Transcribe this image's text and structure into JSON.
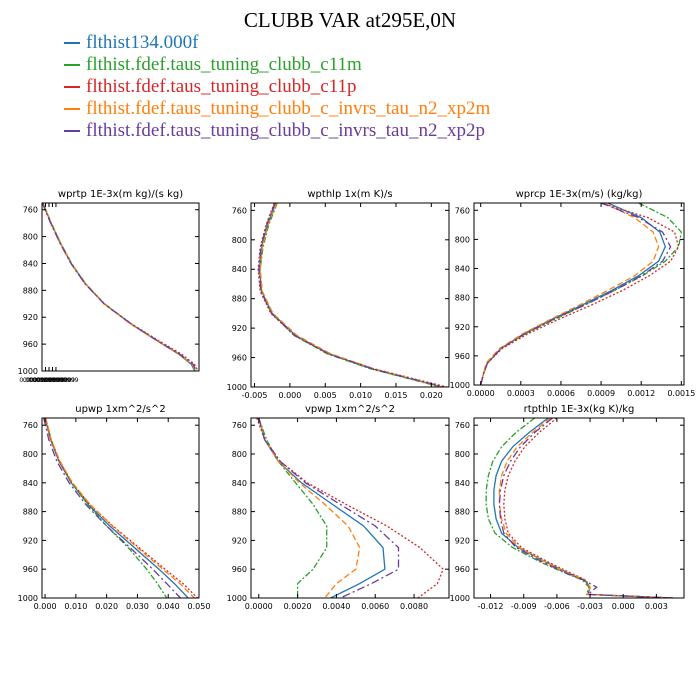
{
  "figure": {
    "title": "CLUBB VAR at295E,0N",
    "colors": {
      "flthist134.000f": "#1f77b4",
      "c11m": "#2ca02c",
      "c11p": "#d62728",
      "xp2m": "#ff7f0e",
      "xp2p": "#6a3d9a"
    }
  },
  "legend": {
    "items": [
      {
        "label": "flthist134.000f",
        "color": "#1f77b4",
        "dash": "solid"
      },
      {
        "label": "flthist.fdef.taus_tuning_clubb_c11m",
        "color": "#2ca02c",
        "dash": "solid"
      },
      {
        "label": "flthist.fdef.taus_tuning_clubb_c11p",
        "color": "#d62728",
        "dash": "solid"
      },
      {
        "label": "flthist.fdef.taus_tuning_clubb_c_invrs_tau_n2_xp2m",
        "color": "#ff7f0e",
        "dash": "solid"
      },
      {
        "label": "flthist.fdef.taus_tuning_clubb_c_invrs_tau_n2_xp2p",
        "color": "#6a3d9a",
        "dash": "solid"
      }
    ]
  },
  "chart_data": [
    {
      "type": "line",
      "title": "wprtp  1E-3x(m kg)/(s kg)",
      "xlim": [
        0.0,
        0.045
      ],
      "ylim": [
        1000,
        750
      ],
      "xticks": [
        "0.0000000000",
        "0.0009999999",
        "0.0020000000",
        "0.0029999999",
        "0.0039999999"
      ],
      "yticks": [
        760,
        800,
        840,
        880,
        920,
        960,
        1000
      ],
      "y": [
        750,
        780,
        810,
        840,
        870,
        900,
        930,
        955,
        975,
        990,
        1000
      ],
      "series": [
        {
          "name": "flthist134.000f",
          "color": "#1f77b4",
          "dash": "",
          "values": [
            0.0002,
            0.0026,
            0.0053,
            0.0084,
            0.0124,
            0.0178,
            0.0255,
            0.033,
            0.0392,
            0.0428,
            0.0438
          ]
        },
        {
          "name": "c11m",
          "color": "#2ca02c",
          "dash": "6,2,2,2",
          "values": [
            0.0003,
            0.0027,
            0.0054,
            0.0085,
            0.0125,
            0.0179,
            0.0256,
            0.0331,
            0.0393,
            0.0429,
            0.0439
          ]
        },
        {
          "name": "c11p",
          "color": "#d62728",
          "dash": "2,2",
          "values": [
            0.0001,
            0.0025,
            0.0052,
            0.0083,
            0.0123,
            0.0178,
            0.0257,
            0.0335,
            0.04,
            0.0437,
            0.0447
          ]
        },
        {
          "name": "xp2m",
          "color": "#ff7f0e",
          "dash": "6,3",
          "values": [
            0.0002,
            0.0026,
            0.0053,
            0.0084,
            0.0124,
            0.0177,
            0.0254,
            0.033,
            0.0393,
            0.043,
            0.0441
          ]
        },
        {
          "name": "xp2p",
          "color": "#6a3d9a",
          "dash": "8,3,2,3",
          "values": [
            0.0001,
            0.0025,
            0.0052,
            0.0083,
            0.0123,
            0.0178,
            0.0256,
            0.0332,
            0.0395,
            0.0433,
            0.0443
          ]
        }
      ]
    },
    {
      "type": "line",
      "title": "wpthlp  1x(m K)/s",
      "xlim": [
        -0.0055,
        0.0225
      ],
      "ylim": [
        1000,
        750
      ],
      "xticks": [
        "-0.005",
        "0.000",
        "0.005",
        "0.010",
        "0.015",
        "0.020"
      ],
      "yticks": [
        760,
        800,
        840,
        880,
        920,
        960,
        1000
      ],
      "y": [
        750,
        780,
        810,
        840,
        870,
        900,
        930,
        955,
        975,
        990,
        1000
      ],
      "series": [
        {
          "name": "flthist134.000f",
          "color": "#1f77b4",
          "dash": "",
          "values": [
            -0.002,
            -0.0032,
            -0.004,
            -0.0043,
            -0.004,
            -0.0025,
            0.0008,
            0.0055,
            0.0115,
            0.0175,
            0.0215
          ]
        },
        {
          "name": "c11m",
          "color": "#2ca02c",
          "dash": "6,2,2,2",
          "values": [
            -0.0018,
            -0.003,
            -0.0038,
            -0.0042,
            -0.004,
            -0.0026,
            0.0006,
            0.0053,
            0.0113,
            0.0173,
            0.0213
          ]
        },
        {
          "name": "c11p",
          "color": "#d62728",
          "dash": "2,2",
          "values": [
            -0.0022,
            -0.0034,
            -0.0042,
            -0.0045,
            -0.0042,
            -0.0027,
            0.0007,
            0.0056,
            0.0118,
            0.018,
            0.0222
          ]
        },
        {
          "name": "xp2m",
          "color": "#ff7f0e",
          "dash": "6,3",
          "values": [
            -0.0019,
            -0.0031,
            -0.0039,
            -0.0042,
            -0.0039,
            -0.0024,
            0.001,
            0.0058,
            0.0118,
            0.0176,
            0.0214
          ]
        },
        {
          "name": "xp2p",
          "color": "#6a3d9a",
          "dash": "8,3,2,3",
          "values": [
            -0.0021,
            -0.0033,
            -0.0041,
            -0.0044,
            -0.0041,
            -0.0026,
            0.0007,
            0.0055,
            0.0116,
            0.0177,
            0.0218
          ]
        }
      ]
    },
    {
      "type": "line",
      "title": "wprcp  1E-3x(m/s) (kg/kg)",
      "xlim": [
        -5e-05,
        0.00152
      ],
      "ylim": [
        1000,
        750
      ],
      "xticks": [
        "0.0000",
        "0.0003",
        "0.0006",
        "0.0009",
        "0.0012",
        "0.0015"
      ],
      "yticks": [
        760,
        800,
        840,
        880,
        920,
        960,
        1000
      ],
      "y": [
        750,
        770,
        790,
        810,
        830,
        850,
        870,
        890,
        910,
        930,
        950,
        970,
        985,
        1000
      ],
      "series": [
        {
          "name": "flthist134.000f",
          "color": "#1f77b4",
          "dash": "",
          "values": [
            0.00095,
            0.0012,
            0.00134,
            0.00138,
            0.00133,
            0.00118,
            0.00098,
            0.00076,
            0.00053,
            0.00032,
            0.00015,
            5e-05,
            2e-05,
            0.0
          ]
        },
        {
          "name": "c11m",
          "color": "#2ca02c",
          "dash": "6,2,2,2",
          "values": [
            0.00118,
            0.0014,
            0.0015,
            0.00148,
            0.00138,
            0.00121,
            0.001,
            0.00078,
            0.00055,
            0.00033,
            0.00015,
            5e-05,
            2e-05,
            0.0
          ]
        },
        {
          "name": "c11p",
          "color": "#d62728",
          "dash": "2,2",
          "values": [
            0.0009,
            0.00125,
            0.00145,
            0.00148,
            0.00142,
            0.00126,
            0.00106,
            0.00083,
            0.00058,
            0.00035,
            0.00016,
            5e-05,
            2e-05,
            0.0
          ]
        },
        {
          "name": "xp2m",
          "color": "#ff7f0e",
          "dash": "6,3",
          "values": [
            0.00092,
            0.00115,
            0.00129,
            0.00133,
            0.00129,
            0.00115,
            0.00095,
            0.00074,
            0.00052,
            0.00031,
            0.00014,
            4e-05,
            2e-05,
            0.0
          ]
        },
        {
          "name": "xp2p",
          "color": "#6a3d9a",
          "dash": "8,3,2,3",
          "values": [
            0.0009,
            0.00118,
            0.00136,
            0.00142,
            0.00136,
            0.0012,
            0.001,
            0.00078,
            0.00054,
            0.00033,
            0.00015,
            5e-05,
            2e-05,
            0.0
          ]
        }
      ]
    },
    {
      "type": "line",
      "title": "upwp  1xm^2/s^2",
      "xlim": [
        -0.001,
        0.05
      ],
      "ylim": [
        1000,
        750
      ],
      "xticks": [
        "0.000",
        "0.010",
        "0.020",
        "0.030",
        "0.040",
        "0.050"
      ],
      "yticks": [
        760,
        800,
        840,
        880,
        920,
        960,
        1000
      ],
      "y": [
        750,
        780,
        810,
        840,
        870,
        900,
        930,
        960,
        980,
        1000
      ],
      "series": [
        {
          "name": "flthist134.000f",
          "color": "#1f77b4",
          "dash": "",
          "values": [
            0.0,
            0.0018,
            0.0045,
            0.0085,
            0.014,
            0.021,
            0.029,
            0.037,
            0.042,
            0.0465
          ]
        },
        {
          "name": "c11m",
          "color": "#2ca02c",
          "dash": "6,2,2,2",
          "values": [
            0.0002,
            0.002,
            0.0047,
            0.0086,
            0.0138,
            0.02,
            0.027,
            0.033,
            0.0365,
            0.0395
          ]
        },
        {
          "name": "c11p",
          "color": "#d62728",
          "dash": "2,2",
          "values": [
            0.0,
            0.0018,
            0.0046,
            0.0088,
            0.0145,
            0.022,
            0.0305,
            0.039,
            0.0448,
            0.0495
          ]
        },
        {
          "name": "xp2m",
          "color": "#ff7f0e",
          "dash": "6,3",
          "values": [
            0.0002,
            0.002,
            0.0048,
            0.0089,
            0.0146,
            0.0218,
            0.03,
            0.0382,
            0.0438,
            0.0485
          ]
        },
        {
          "name": "xp2p",
          "color": "#6a3d9a",
          "dash": "8,3,2,3",
          "values": [
            -0.0004,
            0.0012,
            0.0038,
            0.0078,
            0.0132,
            0.02,
            0.0276,
            0.035,
            0.0395,
            0.044
          ]
        }
      ]
    },
    {
      "type": "line",
      "title": "vpwp  1xm^2/s^2",
      "xlim": [
        -0.0004,
        0.0098
      ],
      "ylim": [
        1000,
        750
      ],
      "xticks": [
        "0.0000",
        "0.0020",
        "0.0040",
        "0.0060",
        "0.0080"
      ],
      "yticks": [
        760,
        800,
        840,
        880,
        920,
        960,
        1000
      ],
      "y": [
        750,
        780,
        810,
        840,
        870,
        900,
        930,
        960,
        980,
        1000
      ],
      "series": [
        {
          "name": "flthist134.000f",
          "color": "#1f77b4",
          "dash": "",
          "values": [
            0.0,
            0.0003,
            0.001,
            0.0022,
            0.0038,
            0.0054,
            0.0064,
            0.0065,
            0.0052,
            0.0037
          ]
        },
        {
          "name": "c11m",
          "color": "#2ca02c",
          "dash": "6,2,2,2",
          "values": [
            0.0,
            0.0004,
            0.001,
            0.0019,
            0.0028,
            0.0035,
            0.0035,
            0.0028,
            0.002,
            0.002
          ]
        },
        {
          "name": "c11p",
          "color": "#d62728",
          "dash": "2,2",
          "values": [
            -0.0001,
            0.0003,
            0.0011,
            0.0025,
            0.0045,
            0.0066,
            0.0083,
            0.0095,
            0.0092,
            0.0082
          ]
        },
        {
          "name": "xp2m",
          "color": "#ff7f0e",
          "dash": "6,3",
          "values": [
            0.0,
            0.0003,
            0.001,
            0.0021,
            0.0034,
            0.0046,
            0.0052,
            0.005,
            0.004,
            0.0034
          ]
        },
        {
          "name": "xp2p",
          "color": "#6a3d9a",
          "dash": "8,3,2,3",
          "values": [
            0.0,
            0.0003,
            0.0011,
            0.0024,
            0.0042,
            0.006,
            0.0072,
            0.0072,
            0.0058,
            0.0042
          ]
        }
      ]
    },
    {
      "type": "line",
      "title": "rtpthlp  1E-3x(kg K)/kg",
      "xlim": [
        -0.0135,
        0.0055
      ],
      "ylim": [
        1000,
        750
      ],
      "xticks": [
        "-0.012",
        "-0.009",
        "-0.006",
        "-0.003",
        "0.000",
        "0.003"
      ],
      "yticks": [
        760,
        800,
        840,
        880,
        920,
        960,
        1000
      ],
      "y": [
        750,
        770,
        790,
        810,
        830,
        850,
        870,
        890,
        910,
        930,
        950,
        965,
        975,
        985,
        995,
        1000
      ],
      "series": [
        {
          "name": "flthist134.000f",
          "color": "#1f77b4",
          "dash": "",
          "values": [
            -0.0068,
            -0.0085,
            -0.01,
            -0.011,
            -0.0115,
            -0.0117,
            -0.0117,
            -0.0115,
            -0.011,
            -0.0095,
            -0.007,
            -0.005,
            -0.0035,
            -0.003,
            -0.0032,
            0.0045
          ]
        },
        {
          "name": "c11m",
          "color": "#2ca02c",
          "dash": "6,2,2,2",
          "values": [
            -0.008,
            -0.0097,
            -0.011,
            -0.0118,
            -0.0122,
            -0.0124,
            -0.0124,
            -0.0122,
            -0.0116,
            -0.01,
            -0.0075,
            -0.0053,
            -0.0037,
            -0.0031,
            -0.0033,
            0.0045
          ]
        },
        {
          "name": "c11p",
          "color": "#d62728",
          "dash": "2,2",
          "values": [
            -0.006,
            -0.0076,
            -0.0089,
            -0.0098,
            -0.0104,
            -0.0107,
            -0.0108,
            -0.0107,
            -0.0104,
            -0.0092,
            -0.0068,
            -0.0048,
            -0.0034,
            -0.003,
            -0.0032,
            0.0045
          ]
        },
        {
          "name": "xp2m",
          "color": "#ff7f0e",
          "dash": "6,3",
          "values": [
            -0.0066,
            -0.0082,
            -0.0096,
            -0.0105,
            -0.011,
            -0.0112,
            -0.0112,
            -0.011,
            -0.0106,
            -0.0094,
            -0.007,
            -0.005,
            -0.0035,
            -0.003,
            -0.0032,
            0.0045
          ]
        },
        {
          "name": "xp2p",
          "color": "#6a3d9a",
          "dash": "8,3,2,3",
          "values": [
            -0.0064,
            -0.008,
            -0.0093,
            -0.0102,
            -0.0108,
            -0.0111,
            -0.0112,
            -0.0111,
            -0.0108,
            -0.0097,
            -0.0073,
            -0.0052,
            -0.0036,
            -0.0024,
            -0.0032,
            0.0045
          ]
        }
      ]
    }
  ]
}
